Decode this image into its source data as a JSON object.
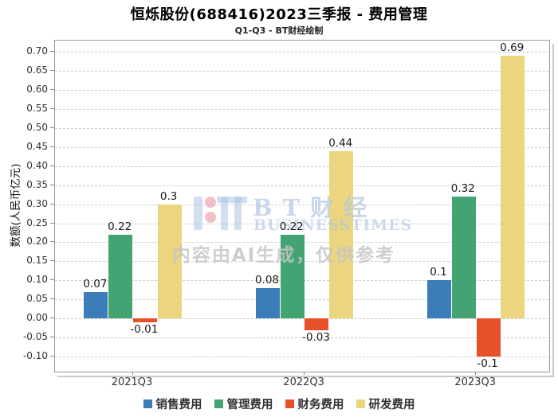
{
  "header": {
    "title": "恒烁股份(688416)2023三季报 - 费用管理",
    "subtitle": "Q1-Q3 - BT财经绘制"
  },
  "watermark": {
    "brand_cn": "BT财经",
    "brand_en": "BUSINESSTIMES",
    "ai_notice": "内容由AI生成，仅供参考"
  },
  "chart_data": {
    "type": "bar",
    "title": "恒烁股份(688416)2023三季报 - 费用管理",
    "subtitle": "Q1-Q3 - BT财经绘制",
    "xlabel": "",
    "ylabel": "数额(人民币亿元)",
    "categories": [
      "2021Q3",
      "2022Q3",
      "2023Q3"
    ],
    "series": [
      {
        "name": "销售费用",
        "color": "#3a7db8",
        "values": [
          0.07,
          0.08,
          0.1
        ]
      },
      {
        "name": "管理费用",
        "color": "#43a373",
        "values": [
          0.22,
          0.22,
          0.32
        ]
      },
      {
        "name": "财务费用",
        "color": "#e8502a",
        "values": [
          -0.01,
          -0.03,
          -0.1
        ]
      },
      {
        "name": "研发费用",
        "color": "#ecd57f",
        "values": [
          0.3,
          0.44,
          0.69
        ]
      }
    ],
    "yticks": [
      -0.1,
      -0.05,
      0,
      0.05,
      0.1,
      0.15,
      0.2,
      0.25,
      0.3,
      0.35,
      0.4,
      0.45,
      0.5,
      0.55,
      0.6,
      0.65,
      0.7
    ],
    "ylim": [
      -0.1395,
      0.7295
    ],
    "grid": "horizontal-dashed",
    "legend_position": "bottom",
    "bar_value_labels_shown": true
  }
}
